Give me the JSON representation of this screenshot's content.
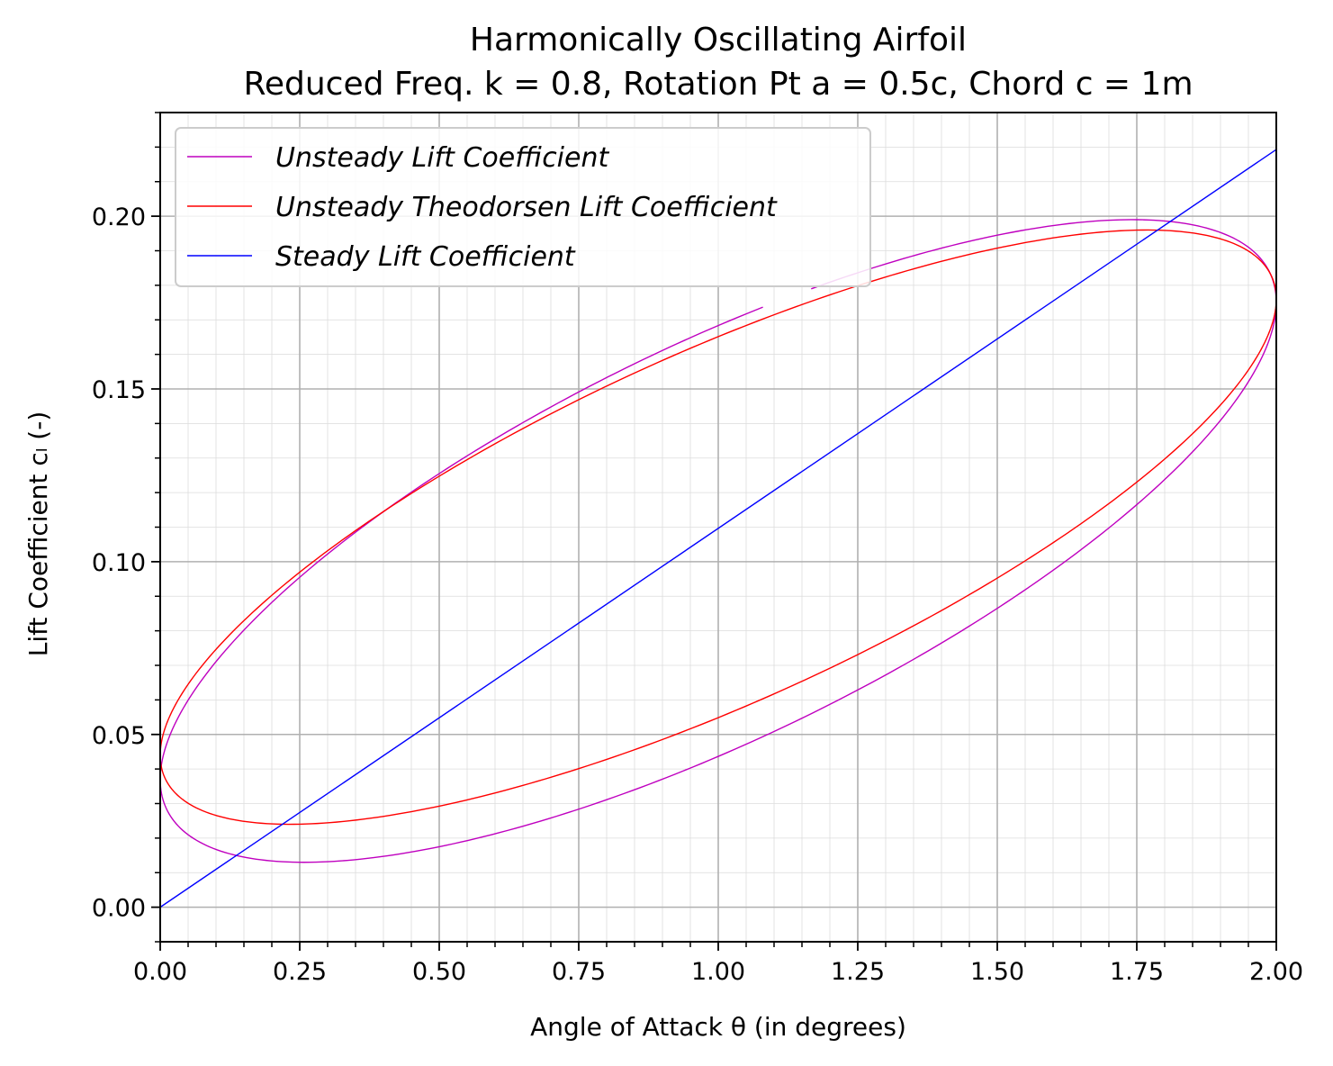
{
  "chart_data": {
    "type": "line",
    "title": "Harmonically Oscillating Airfoil",
    "subtitle": "Reduced Freq. k = 0.8, Rotation Pt a = 0.5c, Chord c = 1m",
    "xlabel": "Angle of Attack θ (in degrees)",
    "ylabel": "Lift Coefficient cₗ (-)",
    "xlim": [
      0.0,
      2.0
    ],
    "ylim": [
      -0.01,
      0.23
    ],
    "xticks": [
      "0.00",
      "0.25",
      "0.50",
      "0.75",
      "1.00",
      "1.25",
      "1.50",
      "1.75",
      "2.00"
    ],
    "yticks": [
      "0.00",
      "0.05",
      "0.10",
      "0.15",
      "0.20"
    ],
    "grid": true,
    "minor_grid": true,
    "legend_position": "upper-left",
    "series": [
      {
        "name": "Unsteady Lift Coefficient",
        "color": "#bf00bf",
        "shape": "ellipse",
        "center": [
          1.0,
          0.106
        ],
        "amplitude": 1.0,
        "cl_at_theta_max": 0.175,
        "cl_max": 0.199,
        "theta_at_cl_max": 1.75,
        "cl_min": 0.013,
        "theta_at_cl_min": 0.25,
        "start_theta": 1.08,
        "phase_sweep_deg": 355
      },
      {
        "name": "Unsteady Theodorsen Lift Coefficient",
        "color": "#ff0000",
        "shape": "ellipse",
        "center": [
          1.0,
          0.11
        ],
        "amplitude": 1.0,
        "cl_at_theta_max": 0.176,
        "cl_max": 0.196,
        "theta_at_cl_max": 1.75,
        "cl_min": 0.024,
        "theta_at_cl_min": 0.25,
        "phase_sweep_deg": 360
      },
      {
        "name": "Steady Lift Coefficient",
        "color": "#0000ff",
        "shape": "line",
        "x": [
          0.0,
          2.0
        ],
        "y": [
          0.0,
          0.2193
        ]
      }
    ]
  }
}
